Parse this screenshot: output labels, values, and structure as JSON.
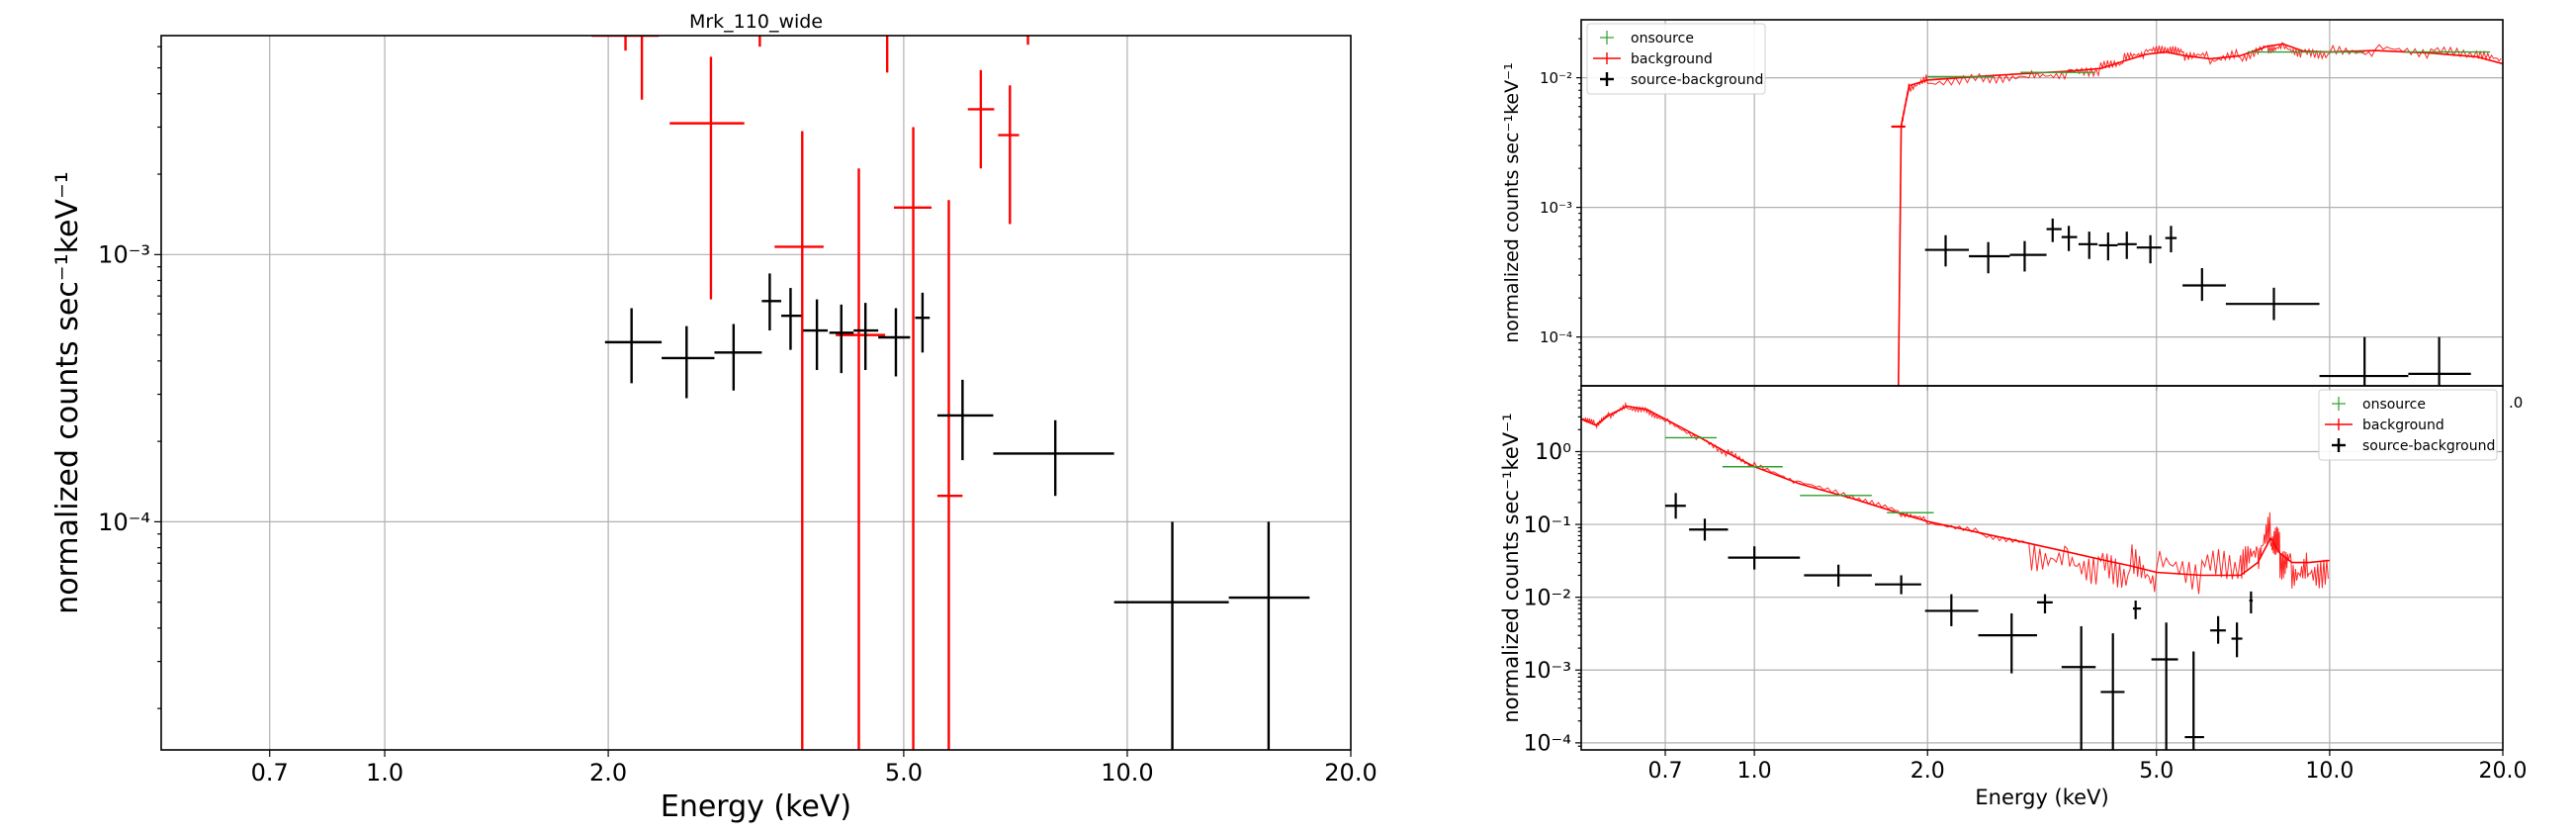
{
  "chart_data": [
    {
      "id": "main",
      "type": "scatter",
      "title": "Mrk_110_wide",
      "xlabel": "Energy (keV)",
      "ylabel": "normalized counts sec⁻¹keV⁻¹",
      "xscale": "log",
      "yscale": "log",
      "xlim": [
        0.5,
        20.0
      ],
      "ylim": [
        1.4e-05,
        0.0066
      ],
      "xticks": [
        0.7,
        1.0,
        2.0,
        5.0,
        10.0,
        20.0
      ],
      "xticklabels": [
        "0.7",
        "1.0",
        "2.0",
        "5.0",
        "10.0",
        "20.0"
      ],
      "yticks": [
        0.0001,
        0.001
      ],
      "yticklabels": [
        "10⁻⁴",
        "10⁻³"
      ],
      "grid": true,
      "legend": null,
      "series": [
        {
          "color": "#ff0000",
          "points": [
            {
              "x": 2.11,
              "xlo": 1.9,
              "xhi": 2.34,
              "y": 0.0066,
              "ylo": 0.0058,
              "yhi": 0.0066
            },
            {
              "x": 2.22,
              "xlo": 2.22,
              "xhi": 2.22,
              "y": 0.0066,
              "ylo": 0.0038,
              "yhi": 0.0066
            },
            {
              "x": 2.75,
              "xlo": 2.42,
              "xhi": 3.05,
              "y": 0.0031,
              "ylo": 0.00068,
              "yhi": 0.0055
            },
            {
              "x": 3.2,
              "xlo": 3.2,
              "xhi": 3.2,
              "y": 0.0066,
              "ylo": 0.006,
              "yhi": 0.0066
            },
            {
              "x": 3.65,
              "xlo": 3.35,
              "xhi": 3.9,
              "y": 0.00107,
              "ylo": 1.4e-05,
              "yhi": 0.0029
            },
            {
              "x": 4.35,
              "xlo": 4.05,
              "xhi": 4.72,
              "y": 0.0005,
              "ylo": 1.4e-05,
              "yhi": 0.0021
            },
            {
              "x": 4.75,
              "xlo": 4.75,
              "xhi": 4.75,
              "y": 0.0066,
              "ylo": 0.0048,
              "yhi": 0.0066
            },
            {
              "x": 5.15,
              "xlo": 4.85,
              "xhi": 5.45,
              "y": 0.0015,
              "ylo": 1.4e-05,
              "yhi": 0.003
            },
            {
              "x": 5.75,
              "xlo": 5.55,
              "xhi": 6.0,
              "y": 0.000125,
              "ylo": 1.4e-05,
              "yhi": 0.0016
            },
            {
              "x": 6.35,
              "xlo": 6.1,
              "xhi": 6.62,
              "y": 0.0035,
              "ylo": 0.0021,
              "yhi": 0.0049
            },
            {
              "x": 6.95,
              "xlo": 6.7,
              "xhi": 7.15,
              "y": 0.0028,
              "ylo": 0.0013,
              "yhi": 0.0043
            },
            {
              "x": 7.35,
              "xlo": 7.35,
              "xhi": 7.35,
              "y": 0.0066,
              "ylo": 0.0061,
              "yhi": 0.0066
            }
          ]
        },
        {
          "color": "#000000",
          "points": [
            {
              "x": 2.15,
              "xlo": 1.98,
              "xhi": 2.36,
              "y": 0.00047,
              "ylo": 0.00033,
              "yhi": 0.00063
            },
            {
              "x": 2.55,
              "xlo": 2.36,
              "xhi": 2.78,
              "y": 0.00041,
              "ylo": 0.00029,
              "yhi": 0.00054
            },
            {
              "x": 2.95,
              "xlo": 2.78,
              "xhi": 3.22,
              "y": 0.00043,
              "ylo": 0.00031,
              "yhi": 0.00055
            },
            {
              "x": 3.3,
              "xlo": 3.22,
              "xhi": 3.42,
              "y": 0.00067,
              "ylo": 0.00052,
              "yhi": 0.00085
            },
            {
              "x": 3.52,
              "xlo": 3.42,
              "xhi": 3.64,
              "y": 0.00059,
              "ylo": 0.00044,
              "yhi": 0.00075
            },
            {
              "x": 3.82,
              "xlo": 3.66,
              "xhi": 3.95,
              "y": 0.00052,
              "ylo": 0.00037,
              "yhi": 0.00068
            },
            {
              "x": 4.12,
              "xlo": 3.97,
              "xhi": 4.28,
              "y": 0.00051,
              "ylo": 0.00036,
              "yhi": 0.00065
            },
            {
              "x": 4.44,
              "xlo": 4.28,
              "xhi": 4.62,
              "y": 0.00052,
              "ylo": 0.00037,
              "yhi": 0.00066
            },
            {
              "x": 4.88,
              "xlo": 4.62,
              "xhi": 5.1,
              "y": 0.00049,
              "ylo": 0.00035,
              "yhi": 0.00063
            },
            {
              "x": 5.3,
              "xlo": 5.18,
              "xhi": 5.42,
              "y": 0.00058,
              "ylo": 0.00043,
              "yhi": 0.00072
            },
            {
              "x": 6.0,
              "xlo": 5.55,
              "xhi": 6.6,
              "y": 0.00025,
              "ylo": 0.00017,
              "yhi": 0.00034
            },
            {
              "x": 8.0,
              "xlo": 6.6,
              "xhi": 9.6,
              "y": 0.00018,
              "ylo": 0.000125,
              "yhi": 0.00024
            },
            {
              "x": 11.5,
              "xlo": 9.6,
              "xhi": 13.7,
              "y": 5e-05,
              "ylo": 1.4e-05,
              "yhi": 0.0001
            },
            {
              "x": 15.5,
              "xlo": 13.7,
              "xhi": 17.6,
              "y": 5.2e-05,
              "ylo": 1.4e-05,
              "yhi": 0.0001
            }
          ]
        }
      ]
    },
    {
      "id": "top_right",
      "type": "scatter",
      "title": "",
      "xlabel": "",
      "ylabel": "normalized counts sec⁻¹keV⁻¹",
      "xscale": "log",
      "yscale": "log",
      "xlim": [
        0.5,
        20.0
      ],
      "ylim": [
        4.2e-05,
        0.028
      ],
      "xticks": [
        0.7,
        1.0,
        2.0,
        5.0,
        10.0
      ],
      "xticklabels": [
        "",
        "",
        "",
        "",
        ""
      ],
      "yticks": [
        0.0001,
        0.001,
        0.01
      ],
      "yticklabels": [
        "10⁻⁴",
        "10⁻³",
        "10⁻²"
      ],
      "grid": true,
      "legend": {
        "position": "top-left",
        "entries": [
          {
            "label": "onsource",
            "color": "#2ca02c",
            "marker": "plus-light"
          },
          {
            "label": "background",
            "color": "#ff0000",
            "marker": "line"
          },
          {
            "label": "source-background",
            "color": "#000000",
            "marker": "plus"
          }
        ]
      },
      "curve": {
        "color": "#ff0000",
        "points": [
          [
            1.78,
            4.2e-05
          ],
          [
            1.8,
            0.0043
          ],
          [
            1.86,
            0.0087
          ],
          [
            2.0,
            0.0096
          ],
          [
            2.5,
            0.0103
          ],
          [
            3.0,
            0.0108
          ],
          [
            3.5,
            0.0112
          ],
          [
            4.0,
            0.0118
          ],
          [
            4.4,
            0.0135
          ],
          [
            4.8,
            0.0152
          ],
          [
            5.2,
            0.0158
          ],
          [
            5.6,
            0.0148
          ],
          [
            6.2,
            0.014
          ],
          [
            7.0,
            0.0148
          ],
          [
            7.8,
            0.0175
          ],
          [
            8.3,
            0.0182
          ],
          [
            9.0,
            0.016
          ],
          [
            10.0,
            0.0158
          ],
          [
            12.0,
            0.0162
          ],
          [
            15.0,
            0.0155
          ],
          [
            18.0,
            0.0145
          ],
          [
            20.0,
            0.0128
          ]
        ]
      },
      "series": [
        {
          "color": "#2ca02c",
          "points": [
            {
              "x": 2.3,
              "xlo": 2.0,
              "xhi": 2.6,
              "y": 0.0102,
              "ylo": 0.0102,
              "yhi": 0.0102
            },
            {
              "x": 3.4,
              "xlo": 2.9,
              "xhi": 3.9,
              "y": 0.011,
              "ylo": 0.011,
              "yhi": 0.011
            },
            {
              "x": 9.5,
              "xlo": 7.2,
              "xhi": 11.5,
              "y": 0.0158,
              "ylo": 0.0158,
              "yhi": 0.0158
            },
            {
              "x": 16.0,
              "xlo": 13.5,
              "xhi": 19.0,
              "y": 0.0158,
              "ylo": 0.0158,
              "yhi": 0.0158
            }
          ]
        },
        {
          "color": "#ff0000",
          "points": [
            {
              "x": 1.78,
              "xlo": 1.73,
              "xhi": 1.83,
              "y": 0.0042,
              "ylo": 0.0042,
              "yhi": 0.0042
            }
          ]
        },
        {
          "color": "#000000",
          "points": [
            {
              "x": 2.15,
              "xlo": 1.98,
              "xhi": 2.36,
              "y": 0.00047,
              "ylo": 0.00035,
              "yhi": 0.00061
            },
            {
              "x": 2.55,
              "xlo": 2.36,
              "xhi": 2.78,
              "y": 0.00042,
              "ylo": 0.00031,
              "yhi": 0.00054
            },
            {
              "x": 2.95,
              "xlo": 2.78,
              "xhi": 3.22,
              "y": 0.00043,
              "ylo": 0.00032,
              "yhi": 0.00055
            },
            {
              "x": 3.3,
              "xlo": 3.22,
              "xhi": 3.42,
              "y": 0.00068,
              "ylo": 0.00054,
              "yhi": 0.00082
            },
            {
              "x": 3.52,
              "xlo": 3.42,
              "xhi": 3.64,
              "y": 0.00059,
              "ylo": 0.00046,
              "yhi": 0.00072
            },
            {
              "x": 3.82,
              "xlo": 3.66,
              "xhi": 3.95,
              "y": 0.00052,
              "ylo": 0.0004,
              "yhi": 0.00065
            },
            {
              "x": 4.12,
              "xlo": 3.97,
              "xhi": 4.28,
              "y": 0.00051,
              "ylo": 0.00039,
              "yhi": 0.00064
            },
            {
              "x": 4.44,
              "xlo": 4.28,
              "xhi": 4.62,
              "y": 0.00052,
              "ylo": 0.0004,
              "yhi": 0.00065
            },
            {
              "x": 4.88,
              "xlo": 4.62,
              "xhi": 5.1,
              "y": 0.00049,
              "ylo": 0.00037,
              "yhi": 0.00061
            },
            {
              "x": 5.3,
              "xlo": 5.18,
              "xhi": 5.42,
              "y": 0.00058,
              "ylo": 0.00045,
              "yhi": 0.00072
            },
            {
              "x": 6.0,
              "xlo": 5.55,
              "xhi": 6.6,
              "y": 0.00025,
              "ylo": 0.00019,
              "yhi": 0.00034
            },
            {
              "x": 8.0,
              "xlo": 6.6,
              "xhi": 9.6,
              "y": 0.00018,
              "ylo": 0.000135,
              "yhi": 0.00024
            },
            {
              "x": 11.5,
              "xlo": 9.6,
              "xhi": 13.7,
              "y": 5e-05,
              "ylo": 4.2e-05,
              "yhi": 0.0001
            },
            {
              "x": 15.5,
              "xlo": 13.7,
              "xhi": 17.6,
              "y": 5.2e-05,
              "ylo": 4.2e-05,
              "yhi": 0.0001
            }
          ]
        }
      ]
    },
    {
      "id": "bottom_right",
      "type": "scatter",
      "title": "",
      "xlabel": "Energy (keV)",
      "ylabel": "normalized counts sec⁻¹keV⁻¹",
      "xscale": "log",
      "yscale": "log",
      "xlim": [
        0.5,
        20.0
      ],
      "ylim": [
        8e-05,
        8.0
      ],
      "xticks": [
        0.7,
        1.0,
        2.0,
        5.0,
        10.0,
        20.0
      ],
      "xticklabels": [
        "0.7",
        "1.0",
        "2.0",
        "5.0",
        "10.0",
        "20.0"
      ],
      "yticks": [
        0.0001,
        0.001,
        0.01,
        0.1,
        1.0
      ],
      "yticklabels": [
        "10⁻⁴",
        "10⁻³",
        "10⁻²",
        "10⁻¹",
        "10⁰"
      ],
      "grid": true,
      "overflow_tick_label": "0",
      "legend": {
        "position": "top-right",
        "entries": [
          {
            "label": "onsource",
            "color": "#2ca02c",
            "marker": "plus-light"
          },
          {
            "label": "background",
            "color": "#ff0000",
            "marker": "line"
          },
          {
            "label": "source-background",
            "color": "#000000",
            "marker": "plus"
          }
        ]
      },
      "curve": {
        "color": "#ff0000",
        "points": [
          [
            0.5,
            2.8
          ],
          [
            0.53,
            2.3
          ],
          [
            0.56,
            3.2
          ],
          [
            0.6,
            4.2
          ],
          [
            0.65,
            3.8
          ],
          [
            0.7,
            2.8
          ],
          [
            0.8,
            1.6
          ],
          [
            0.9,
            0.95
          ],
          [
            1.0,
            0.62
          ],
          [
            1.2,
            0.36
          ],
          [
            1.5,
            0.22
          ],
          [
            1.8,
            0.14
          ],
          [
            2.0,
            0.11
          ],
          [
            2.5,
            0.075
          ],
          [
            3.0,
            0.055
          ],
          [
            3.5,
            0.042
          ],
          [
            4.0,
            0.033
          ],
          [
            4.5,
            0.027
          ],
          [
            5.0,
            0.022
          ],
          [
            6.0,
            0.02
          ],
          [
            7.0,
            0.02
          ],
          [
            7.5,
            0.03
          ],
          [
            7.9,
            0.065
          ],
          [
            8.2,
            0.04
          ],
          [
            8.6,
            0.03
          ],
          [
            9.2,
            0.03
          ],
          [
            10.0,
            0.032
          ]
        ]
      },
      "series": [
        {
          "color": "#2ca02c",
          "points": [
            {
              "x": 0.78,
              "xlo": 0.7,
              "xhi": 0.86,
              "y": 1.55,
              "ylo": 1.55,
              "yhi": 1.55
            },
            {
              "x": 1.0,
              "xlo": 0.88,
              "xhi": 1.12,
              "y": 0.62,
              "ylo": 0.62,
              "yhi": 0.62
            },
            {
              "x": 1.4,
              "xlo": 1.2,
              "xhi": 1.6,
              "y": 0.25,
              "ylo": 0.25,
              "yhi": 0.25
            },
            {
              "x": 1.85,
              "xlo": 1.7,
              "xhi": 2.05,
              "y": 0.145,
              "ylo": 0.145,
              "yhi": 0.145
            }
          ]
        },
        {
          "color": "#000000",
          "points": [
            {
              "x": 0.73,
              "xlo": 0.7,
              "xhi": 0.76,
              "y": 0.18,
              "ylo": 0.12,
              "yhi": 0.27
            },
            {
              "x": 0.82,
              "xlo": 0.77,
              "xhi": 0.9,
              "y": 0.085,
              "ylo": 0.06,
              "yhi": 0.12
            },
            {
              "x": 1.0,
              "xlo": 0.9,
              "xhi": 1.2,
              "y": 0.035,
              "ylo": 0.024,
              "yhi": 0.05
            },
            {
              "x": 1.4,
              "xlo": 1.22,
              "xhi": 1.6,
              "y": 0.02,
              "ylo": 0.014,
              "yhi": 0.028
            },
            {
              "x": 1.8,
              "xlo": 1.62,
              "xhi": 1.95,
              "y": 0.015,
              "ylo": 0.011,
              "yhi": 0.02
            },
            {
              "x": 2.2,
              "xlo": 1.98,
              "xhi": 2.45,
              "y": 0.0065,
              "ylo": 0.004,
              "yhi": 0.011
            },
            {
              "x": 2.8,
              "xlo": 2.45,
              "xhi": 3.1,
              "y": 0.003,
              "ylo": 0.0009,
              "yhi": 0.006
            },
            {
              "x": 3.2,
              "xlo": 3.1,
              "xhi": 3.3,
              "y": 0.0085,
              "ylo": 0.006,
              "yhi": 0.011
            },
            {
              "x": 3.7,
              "xlo": 3.42,
              "xhi": 3.92,
              "y": 0.0011,
              "ylo": 8e-05,
              "yhi": 0.004
            },
            {
              "x": 4.2,
              "xlo": 4.0,
              "xhi": 4.4,
              "y": 0.0005,
              "ylo": 8e-05,
              "yhi": 0.0032
            },
            {
              "x": 4.6,
              "xlo": 4.55,
              "xhi": 4.7,
              "y": 0.007,
              "ylo": 0.005,
              "yhi": 0.009
            },
            {
              "x": 5.2,
              "xlo": 4.9,
              "xhi": 5.45,
              "y": 0.0014,
              "ylo": 8e-05,
              "yhi": 0.0045
            },
            {
              "x": 5.8,
              "xlo": 5.6,
              "xhi": 6.05,
              "y": 0.00012,
              "ylo": 8e-05,
              "yhi": 0.0018
            },
            {
              "x": 6.4,
              "xlo": 6.2,
              "xhi": 6.6,
              "y": 0.0035,
              "ylo": 0.0023,
              "yhi": 0.0055
            },
            {
              "x": 6.9,
              "xlo": 6.75,
              "xhi": 7.05,
              "y": 0.0027,
              "ylo": 0.0015,
              "yhi": 0.0045
            },
            {
              "x": 7.3,
              "xlo": 7.25,
              "xhi": 7.35,
              "y": 0.009,
              "ylo": 0.006,
              "yhi": 0.012
            }
          ]
        }
      ]
    }
  ]
}
